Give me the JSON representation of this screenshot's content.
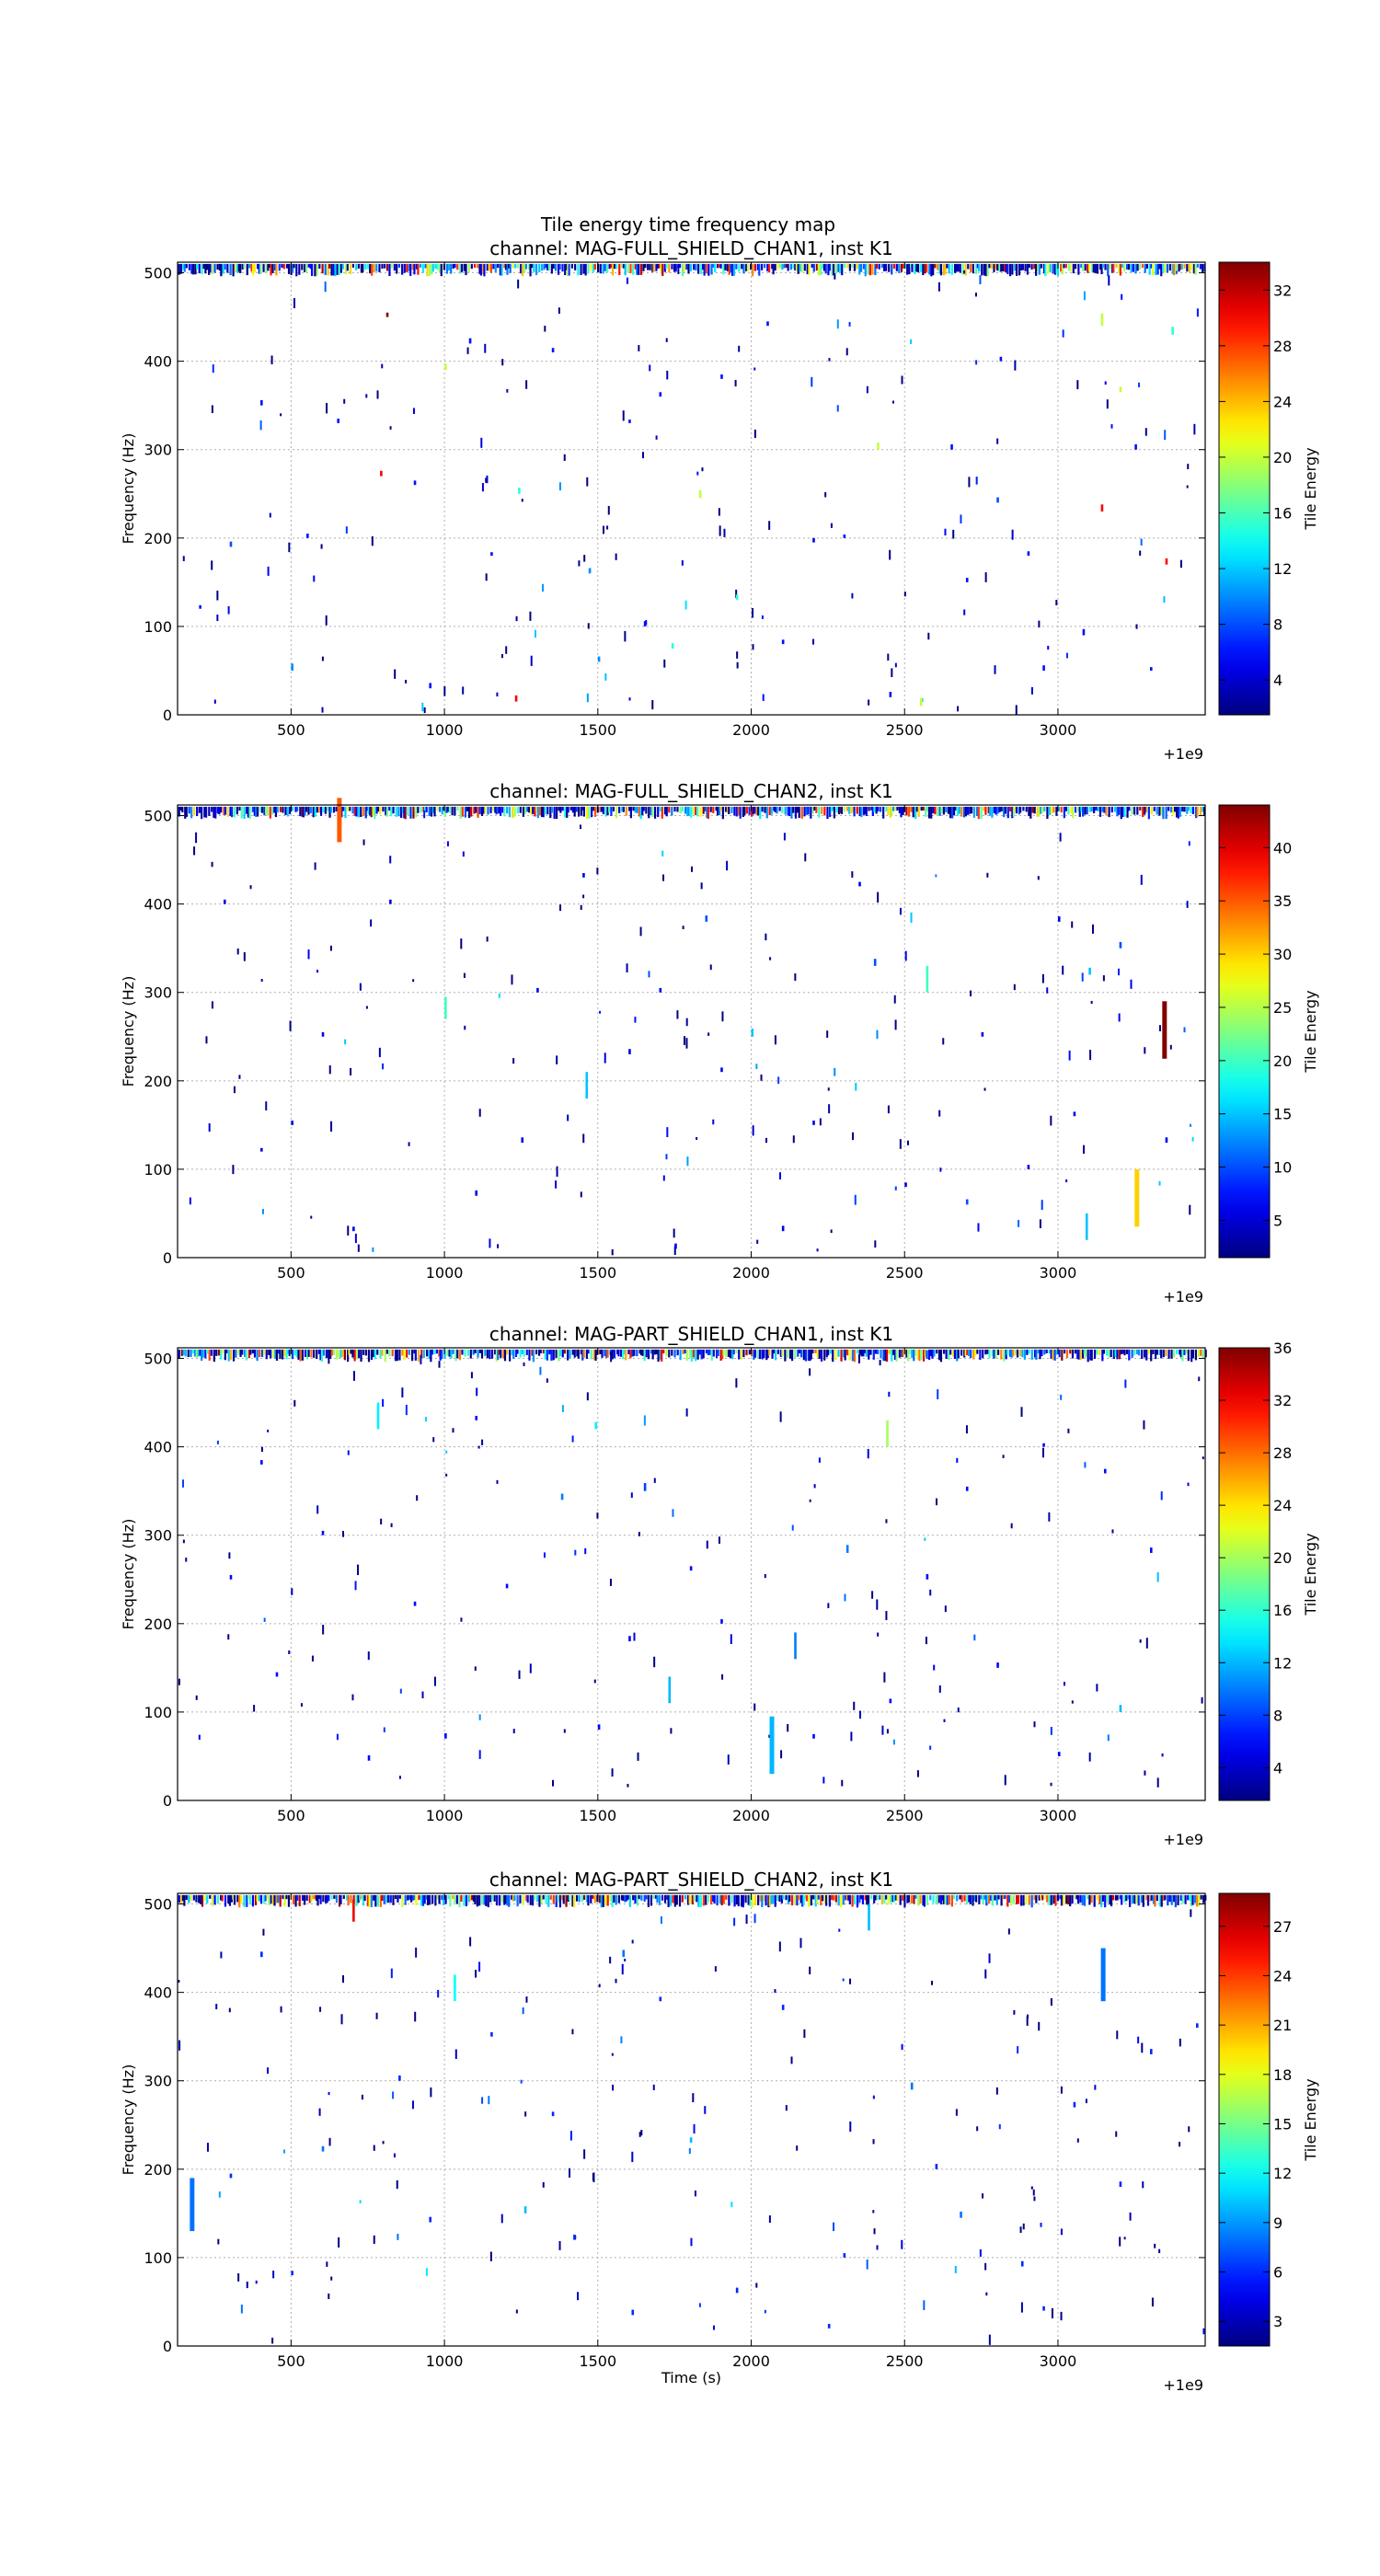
{
  "figure": {
    "suptitle": "Tile energy time frequency map",
    "xlabel": "Time (s)",
    "offset_label": "+1e9"
  },
  "chart_data": [
    {
      "type": "heatmap",
      "title": "channel: MAG-FULL_SHIELD_CHAN1, inst K1",
      "xlabel": "",
      "ylabel": "Frequency (Hz)",
      "colorbar_label": "Tile Energy",
      "xlim": [
        130,
        3480
      ],
      "ylim": [
        0,
        512
      ],
      "x_ticks": [
        500,
        1000,
        1500,
        2000,
        2500,
        3000
      ],
      "y_ticks": [
        0,
        100,
        200,
        300,
        400,
        500
      ],
      "x_offset": "+1e9",
      "clim": [
        1.5,
        34
      ],
      "cbar_ticks": [
        4,
        8,
        12,
        16,
        20,
        24,
        28,
        32
      ],
      "grid": true,
      "tiles": [
        [
          810,
          450,
          40,
          5
        ],
        [
          3370,
          430,
          15,
          9
        ],
        [
          3140,
          440,
          20,
          14
        ],
        [
          1000,
          390,
          20,
          7
        ],
        [
          3200,
          365,
          20,
          6
        ],
        [
          2410,
          300,
          20,
          8
        ],
        [
          790,
          270,
          30,
          6
        ],
        [
          3140,
          230,
          30,
          8
        ],
        [
          1240,
          250,
          15,
          7
        ],
        [
          1830,
          245,
          20,
          9
        ],
        [
          2200,
          195,
          5,
          5
        ],
        [
          3350,
          170,
          30,
          7
        ],
        [
          1470,
          160,
          10,
          6
        ],
        [
          1950,
          130,
          15,
          6
        ],
        [
          1740,
          75,
          15,
          6
        ],
        [
          1500,
          60,
          10,
          6
        ],
        [
          1230,
          15,
          30,
          7
        ],
        [
          2550,
          10,
          20,
          9
        ],
        [
          500,
          50,
          10,
          8
        ],
        [
          300,
          190,
          8,
          6
        ],
        [
          400,
          350,
          6,
          6
        ],
        [
          2810,
          400,
          6,
          5
        ],
        [
          3080,
          90,
          6,
          7
        ],
        [
          2800,
          240,
          8,
          6
        ],
        [
          2650,
          300,
          6,
          6
        ],
        [
          1080,
          420,
          6,
          6
        ],
        [
          900,
          260,
          6,
          5
        ],
        [
          1650,
          100,
          6,
          6
        ],
        [
          2100,
          80,
          6,
          5
        ],
        [
          2450,
          20,
          6,
          6
        ],
        [
          200,
          120,
          6,
          4
        ],
        [
          650,
          330,
          6,
          5
        ],
        [
          1350,
          410,
          6,
          5
        ],
        [
          1900,
          380,
          6,
          5
        ],
        [
          2300,
          200,
          6,
          4
        ],
        [
          2950,
          50,
          6,
          6
        ],
        [
          3250,
          300,
          6,
          6
        ],
        [
          550,
          200,
          6,
          5
        ],
        [
          1150,
          180,
          6,
          4
        ],
        [
          1600,
          330,
          6,
          4
        ],
        [
          2700,
          150,
          6,
          5
        ],
        [
          3300,
          50,
          6,
          4
        ],
        [
          950,
          30,
          6,
          6
        ],
        [
          2050,
          440,
          6,
          5
        ],
        [
          1700,
          360,
          6,
          5
        ],
        [
          2900,
          180,
          6,
          5
        ]
      ]
    },
    {
      "type": "heatmap",
      "title": "channel: MAG-FULL_SHIELD_CHAN2, inst K1",
      "xlabel": "",
      "ylabel": "Frequency (Hz)",
      "colorbar_label": "Tile Energy",
      "xlim": [
        130,
        3480
      ],
      "ylim": [
        0,
        512
      ],
      "x_ticks": [
        500,
        1000,
        1500,
        2000,
        2500,
        3000
      ],
      "y_ticks": [
        0,
        100,
        200,
        300,
        400,
        500
      ],
      "x_offset": "+1e9",
      "clim": [
        1.5,
        44
      ],
      "cbar_ticks": [
        5,
        10,
        15,
        20,
        25,
        30,
        35,
        40
      ],
      "grid": true,
      "tiles": [
        [
          3340,
          225,
          44,
          65
        ],
        [
          3250,
          35,
          30,
          65
        ],
        [
          650,
          470,
          35,
          50
        ],
        [
          3090,
          20,
          15,
          30
        ],
        [
          2570,
          300,
          20,
          30
        ],
        [
          1460,
          180,
          15,
          30
        ],
        [
          2400,
          330,
          10,
          8
        ],
        [
          1000,
          270,
          20,
          25
        ],
        [
          2000,
          250,
          15,
          9
        ],
        [
          1850,
          380,
          10,
          7
        ],
        [
          3100,
          320,
          15,
          8
        ],
        [
          3200,
          350,
          10,
          7
        ],
        [
          2700,
          60,
          10,
          6
        ],
        [
          500,
          150,
          6,
          5
        ],
        [
          400,
          120,
          6,
          4
        ],
        [
          820,
          400,
          6,
          5
        ],
        [
          1300,
          300,
          6,
          5
        ],
        [
          1600,
          230,
          6,
          6
        ],
        [
          2200,
          150,
          6,
          5
        ],
        [
          2900,
          100,
          6,
          5
        ],
        [
          3000,
          380,
          6,
          6
        ],
        [
          1100,
          70,
          6,
          6
        ],
        [
          1750,
          10,
          6,
          6
        ],
        [
          2500,
          80,
          6,
          5
        ],
        [
          3350,
          130,
          6,
          6
        ],
        [
          700,
          30,
          6,
          5
        ],
        [
          1450,
          430,
          6,
          5
        ],
        [
          2100,
          30,
          6,
          6
        ],
        [
          600,
          250,
          6,
          5
        ],
        [
          1900,
          210,
          6,
          5
        ],
        [
          3050,
          160,
          6,
          5
        ],
        [
          280,
          400,
          6,
          5
        ],
        [
          1250,
          130,
          6,
          6
        ],
        [
          2350,
          420,
          6,
          5
        ],
        [
          2750,
          250,
          6,
          5
        ],
        [
          1700,
          300,
          6,
          5
        ]
      ]
    },
    {
      "type": "heatmap",
      "title": "channel: MAG-PART_SHIELD_CHAN1, inst K1",
      "xlabel": "",
      "ylabel": "Frequency (Hz)",
      "colorbar_label": "Tile Energy",
      "xlim": [
        130,
        3480
      ],
      "ylim": [
        0,
        512
      ],
      "x_ticks": [
        500,
        1000,
        1500,
        2000,
        2500,
        3000
      ],
      "y_ticks": [
        0,
        100,
        200,
        300,
        400,
        500
      ],
      "x_offset": "+1e9",
      "clim": [
        1.5,
        36
      ],
      "cbar_ticks": [
        4,
        8,
        12,
        16,
        20,
        24,
        28,
        32,
        36
      ],
      "grid": true,
      "tiles": [
        [
          2060,
          30,
          12,
          65
        ],
        [
          2440,
          400,
          20,
          30
        ],
        [
          780,
          420,
          14,
          30
        ],
        [
          1380,
          340,
          10,
          7
        ],
        [
          2140,
          160,
          10,
          30
        ],
        [
          1730,
          110,
          12,
          30
        ],
        [
          1650,
          350,
          8,
          9
        ],
        [
          1490,
          420,
          14,
          8
        ],
        [
          3200,
          100,
          12,
          8
        ],
        [
          2310,
          280,
          10,
          9
        ],
        [
          2570,
          250,
          6,
          6
        ],
        [
          1500,
          80,
          6,
          6
        ],
        [
          1000,
          70,
          6,
          6
        ],
        [
          750,
          45,
          6,
          6
        ],
        [
          600,
          300,
          6,
          5
        ],
        [
          400,
          380,
          6,
          5
        ],
        [
          2800,
          150,
          6,
          6
        ],
        [
          3000,
          50,
          6,
          5
        ],
        [
          1200,
          240,
          6,
          5
        ],
        [
          1900,
          200,
          6,
          5
        ],
        [
          2700,
          350,
          6,
          5
        ],
        [
          3300,
          280,
          6,
          6
        ],
        [
          450,
          140,
          6,
          5
        ],
        [
          1100,
          430,
          6,
          5
        ],
        [
          1600,
          180,
          6,
          6
        ],
        [
          2200,
          70,
          6,
          5
        ],
        [
          3150,
          370,
          6,
          5
        ],
        [
          900,
          220,
          6,
          5
        ],
        [
          2450,
          110,
          6,
          5
        ],
        [
          1800,
          260,
          6,
          5
        ],
        [
          300,
          250,
          6,
          5
        ],
        [
          2950,
          400,
          6,
          4
        ]
      ]
    },
    {
      "type": "heatmap",
      "title": "channel: MAG-PART_SHIELD_CHAN2, inst K1",
      "xlabel": "Time (s)",
      "ylabel": "Frequency (Hz)",
      "colorbar_label": "Tile Energy",
      "xlim": [
        130,
        3480
      ],
      "ylim": [
        0,
        512
      ],
      "x_ticks": [
        500,
        1000,
        1500,
        2000,
        2500,
        3000
      ],
      "y_ticks": [
        0,
        100,
        200,
        300,
        400,
        500
      ],
      "x_offset": "+1e9",
      "clim": [
        1.5,
        29
      ],
      "cbar_ticks": [
        3,
        6,
        9,
        12,
        15,
        18,
        21,
        24,
        27
      ],
      "grid": true,
      "tiles": [
        [
          170,
          130,
          8,
          60
        ],
        [
          3140,
          390,
          8,
          60
        ],
        [
          1030,
          390,
          12,
          30
        ],
        [
          700,
          480,
          26,
          25
        ],
        [
          2380,
          470,
          10,
          30
        ],
        [
          1580,
          440,
          8,
          8
        ],
        [
          2520,
          290,
          8,
          8
        ],
        [
          3050,
          270,
          6,
          6
        ],
        [
          1610,
          35,
          6,
          6
        ],
        [
          1260,
          150,
          10,
          8
        ],
        [
          1420,
          120,
          6,
          6
        ],
        [
          2680,
          145,
          8,
          7
        ],
        [
          2880,
          90,
          6,
          6
        ],
        [
          850,
          300,
          6,
          6
        ],
        [
          600,
          220,
          8,
          6
        ],
        [
          1950,
          60,
          6,
          6
        ],
        [
          2250,
          20,
          6,
          5
        ],
        [
          3300,
          330,
          6,
          6
        ],
        [
          400,
          440,
          6,
          6
        ],
        [
          1800,
          230,
          10,
          6
        ],
        [
          2100,
          380,
          6,
          6
        ],
        [
          3450,
          360,
          6,
          5
        ],
        [
          500,
          80,
          6,
          5
        ],
        [
          1150,
          350,
          6,
          5
        ],
        [
          2600,
          200,
          6,
          6
        ],
        [
          2950,
          40,
          6,
          5
        ],
        [
          950,
          140,
          6,
          6
        ],
        [
          1700,
          390,
          6,
          5
        ],
        [
          3200,
          180,
          6,
          6
        ],
        [
          300,
          190,
          6,
          5
        ],
        [
          2300,
          100,
          6,
          5
        ],
        [
          1350,
          260,
          6,
          5
        ]
      ]
    }
  ]
}
